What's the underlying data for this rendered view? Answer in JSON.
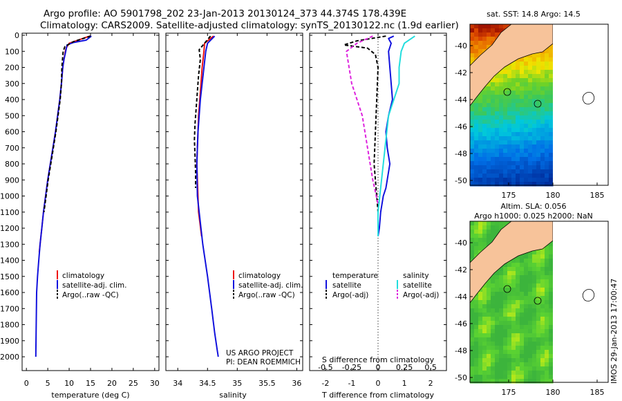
{
  "header": {
    "title_line1": "Argo profile: AO 5901798_202 23-Jan-2013 20130124_373 44.374S 178.439E",
    "title_line2": "Climatology: CARS2009. Satellite-adjusted climatology: synTS_20130122.nc (1.9d earlier)"
  },
  "colors": {
    "climatology": "#ee1111",
    "satellite": "#1111dd",
    "argo": "#000000",
    "satellite_s": "#22dddd",
    "argo_s": "#dd22dd",
    "land": "#f7c39a"
  },
  "chart_data": [
    {
      "type": "line",
      "id": "temperature",
      "xlabel": "temperature (deg C)",
      "xlim": [
        -1,
        31
      ],
      "xticks": [
        "0",
        "5",
        "10",
        "15",
        "20",
        "25",
        "30"
      ],
      "ylim": [
        2060,
        0
      ],
      "yticks": [
        "0",
        "100",
        "200",
        "300",
        "400",
        "500",
        "600",
        "700",
        "800",
        "900",
        "1000",
        "1100",
        "1200",
        "1300",
        "1400",
        "1500",
        "1600",
        "1700",
        "1800",
        "1900",
        "2000"
      ],
      "legend_position": "lower-center",
      "series": [
        {
          "name": "climatology",
          "style": "solid",
          "color": "#ee1111",
          "x": [
            14.8,
            10,
            9.3,
            9.1,
            8.8,
            8.5,
            8.2,
            7.8,
            7.3,
            6.8,
            6.2,
            5.6,
            5.0,
            4.5,
            4.0,
            3.6,
            3.2,
            3.0
          ],
          "y": [
            5,
            50,
            80,
            100,
            150,
            200,
            300,
            400,
            500,
            600,
            700,
            800,
            900,
            1000,
            1100,
            1200,
            1300,
            1350
          ]
        },
        {
          "name": "satellite-adj. clim.",
          "style": "solid",
          "color": "#1111dd",
          "x": [
            15.2,
            14,
            11,
            9.5,
            9.2,
            8.8,
            8.5,
            8.2,
            7.8,
            7.3,
            6.8,
            6.2,
            5.6,
            5.0,
            4.5,
            4.0,
            3.6,
            3.2,
            2.9,
            2.6,
            2.4,
            2.3,
            2.2
          ],
          "y": [
            5,
            30,
            45,
            60,
            100,
            150,
            200,
            300,
            400,
            500,
            600,
            700,
            800,
            900,
            1000,
            1100,
            1200,
            1300,
            1400,
            1500,
            1600,
            1800,
            2000
          ]
        },
        {
          "name": "Argo(..raw -QC)",
          "style": "dashed",
          "color": "#000000",
          "x": [
            15,
            11,
            9,
            8.6,
            8.3,
            8.2,
            7.9,
            7.4,
            6.9,
            6.3,
            5.7,
            5.1,
            4.6,
            4.1
          ],
          "y": [
            5,
            40,
            70,
            100,
            200,
            300,
            400,
            500,
            600,
            700,
            800,
            900,
            1000,
            1100
          ]
        }
      ]
    },
    {
      "type": "line",
      "id": "salinity",
      "xlabel": "salinity",
      "xlim": [
        33.8,
        36.1
      ],
      "xticks": [
        "34",
        "34.5",
        "35",
        "35.5",
        "36"
      ],
      "ylim": [
        2060,
        0
      ],
      "legend_position": "lower-center",
      "note_line1": "US ARGO PROJECT",
      "note_line2": "PI: DEAN ROEMMICH",
      "series": [
        {
          "name": "climatology",
          "style": "solid",
          "color": "#ee1111",
          "x": [
            34.6,
            34.45,
            34.44,
            34.41,
            34.39,
            34.37,
            34.35,
            34.34,
            34.33,
            34.32,
            34.35,
            34.4
          ],
          "y": [
            5,
            50,
            100,
            200,
            300,
            400,
            500,
            600,
            700,
            800,
            1100,
            1250
          ]
        },
        {
          "name": "satellite-adj. clim.",
          "style": "solid",
          "color": "#1111dd",
          "x": [
            34.62,
            34.5,
            34.47,
            34.44,
            34.41,
            34.38,
            34.36,
            34.34,
            34.33,
            34.32,
            34.33,
            34.36,
            34.42,
            34.5,
            34.57,
            34.62,
            34.66,
            34.68
          ],
          "y": [
            5,
            50,
            100,
            200,
            300,
            400,
            500,
            600,
            700,
            800,
            1000,
            1100,
            1300,
            1500,
            1700,
            1850,
            1950,
            2000
          ]
        },
        {
          "name": "Argo(..raw -QC)",
          "style": "dashed",
          "color": "#000000",
          "x": [
            34.55,
            34.36,
            34.38,
            34.35,
            34.33,
            34.31,
            34.29,
            34.28,
            34.29,
            34.3,
            34.3
          ],
          "y": [
            5,
            90,
            150,
            250,
            350,
            450,
            550,
            650,
            750,
            850,
            950
          ]
        }
      ]
    },
    {
      "type": "line",
      "id": "differences",
      "xlabel": "T difference from climatology",
      "xlabel2": "S difference from climatology",
      "xlim": [
        -2.6,
        2.6
      ],
      "xticks": [
        "-2",
        "-1",
        "0",
        "1",
        "2"
      ],
      "x2ticks": [
        "-0.5",
        "-0.25",
        "0",
        "0.25",
        "0.5"
      ],
      "ylim": [
        2060,
        0
      ],
      "legend_titles": [
        "temperature",
        "salinity"
      ],
      "series": [
        {
          "name": "satellite",
          "group": "temperature",
          "style": "solid",
          "color": "#1111dd",
          "x": [
            0.6,
            0.4,
            0.5,
            0.4,
            0.45,
            0.5,
            0.55,
            0.4,
            0.3,
            0.35,
            0.45,
            0.4,
            0.35,
            0.3,
            0.2,
            0.1,
            0.05,
            0
          ],
          "y": [
            5,
            20,
            50,
            100,
            200,
            300,
            400,
            500,
            600,
            700,
            800,
            850,
            900,
            950,
            1000,
            1100,
            1200,
            1250
          ]
        },
        {
          "name": "Argo(-adj)",
          "group": "temperature",
          "style": "dashed",
          "color": "#000000",
          "x": [
            0.3,
            -0.8,
            -1.3,
            -0.4,
            -0.1,
            0,
            -0.05,
            -0.1,
            -0.15,
            -0.1,
            -0.05,
            0
          ],
          "y": [
            5,
            35,
            60,
            80,
            120,
            200,
            400,
            600,
            800,
            900,
            1000,
            1100
          ]
        },
        {
          "name": "satellite",
          "group": "salinity",
          "style": "solid",
          "color": "#22dddd",
          "x": [
            0.35,
            0.25,
            0.22,
            0.2,
            0.2,
            0.1,
            0.05,
            0,
            0
          ],
          "y": [
            5,
            50,
            100,
            200,
            300,
            500,
            800,
            1100,
            1250
          ]
        },
        {
          "name": "Argo(-adj)",
          "group": "salinity",
          "style": "dashed",
          "color": "#dd22dd",
          "x": [
            -0.05,
            -0.2,
            -0.3,
            -0.25,
            -0.15,
            -0.1,
            -0.05,
            0
          ],
          "y": [
            5,
            50,
            100,
            300,
            500,
            700,
            900,
            1050
          ]
        }
      ]
    }
  ],
  "maps": {
    "sst": {
      "title": "sat. SST: 14.8 Argo: 14.5"
    },
    "sla": {
      "title_line1": "Altim. SLA: 0.056",
      "title_line2": "Argo h1000: 0.025 h2000: NaN"
    },
    "xticks": [
      "175",
      "180",
      "185"
    ],
    "yticks": [
      "-40",
      "-42",
      "-44",
      "-46",
      "-48",
      "-50"
    ]
  },
  "footer": {
    "stamp": "IMOS 29-Jan-2013 17:00:47"
  }
}
